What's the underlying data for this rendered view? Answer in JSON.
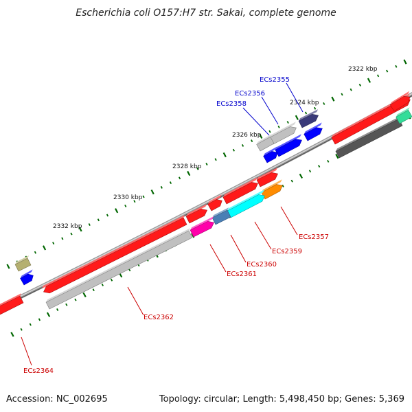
{
  "title": "Escherichia coli O157:H7 str. Sakai, complete genome",
  "footer": {
    "accession": "Accession: NC_002695",
    "topology": "Topology: circular; Length: 5,498,450 bp; Genes: 5,369"
  },
  "scale_labels": [
    "2322 kbp",
    "2324 kbp",
    "2326 kbp",
    "2328 kbp",
    "2330 kbp",
    "2332 kbp"
  ],
  "colors": {
    "backbone": "#808080",
    "forward_label": "#0000cc",
    "reverse_label": "#cc0000",
    "tick": "#006600",
    "red_gene": "#ff1a1a",
    "blue_gene": "#0000ff",
    "gray_gene": "#c0c0c0",
    "dark_gray_gene": "#555555",
    "cyan_gene": "#00ffff",
    "magenta_gene": "#ff00aa",
    "orange_gene": "#ff8c00",
    "steel_gene": "#4a7fb5",
    "navy_gene": "#3a3a7a",
    "olive_gene": "#b5b070",
    "green_gene": "#33dd99"
  },
  "gene_labels": {
    "forward": [
      "ECs2355",
      "ECs2356",
      "ECs2358"
    ],
    "reverse": [
      "ECs2357",
      "ECs2359",
      "ECs2360",
      "ECs2361",
      "ECs2362",
      "ECs2364"
    ]
  }
}
